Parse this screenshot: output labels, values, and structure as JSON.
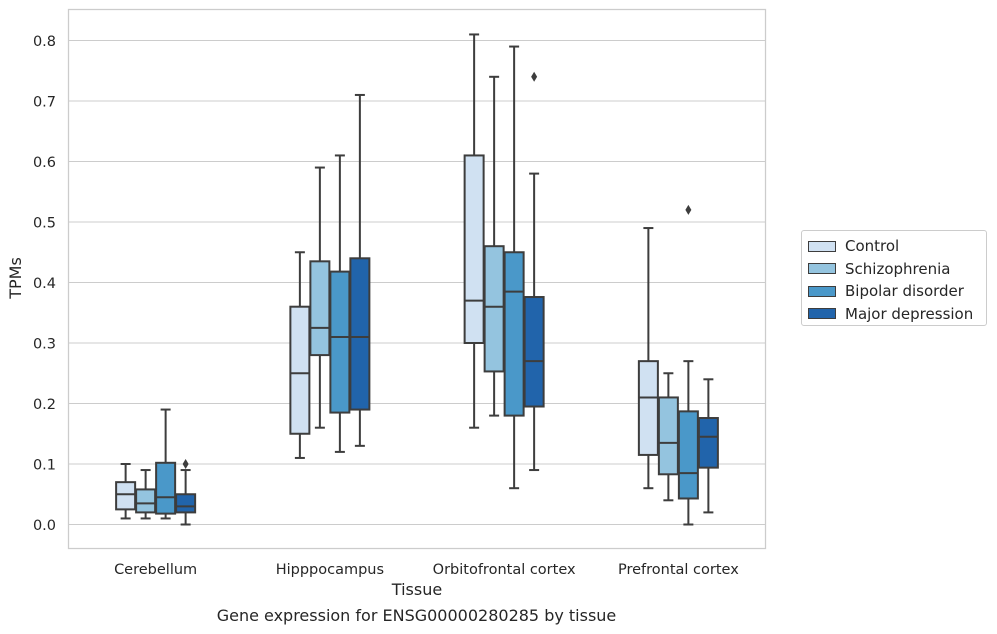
{
  "caption": "Gene expression for ENSG00000280285 by tissue",
  "chart_data": {
    "type": "box",
    "xlabel": "Tissue",
    "ylabel": "TPMs",
    "ylim": [
      -0.04,
      0.85
    ],
    "yticks": [
      "0.0",
      "0.1",
      "0.2",
      "0.3",
      "0.4",
      "0.5",
      "0.6",
      "0.7",
      "0.8"
    ],
    "ytick_values": [
      0.0,
      0.1,
      0.2,
      0.3,
      0.4,
      0.5,
      0.6,
      0.7,
      0.8
    ],
    "categories": [
      "Cerebellum",
      "Hipppocampus",
      "Orbitofrontal cortex",
      "Prefrontal cortex"
    ],
    "grid": "horizontal",
    "legend_position": "outside-right",
    "series": [
      {
        "name": "Control",
        "color": "#d0e1f2",
        "boxes": [
          {
            "whislo": 0.01,
            "q1": 0.025,
            "med": 0.05,
            "q3": 0.07,
            "whishi": 0.1,
            "fliers": []
          },
          {
            "whislo": 0.11,
            "q1": 0.15,
            "med": 0.25,
            "q3": 0.36,
            "whishi": 0.45,
            "fliers": []
          },
          {
            "whislo": 0.16,
            "q1": 0.3,
            "med": 0.37,
            "q3": 0.61,
            "whishi": 0.81,
            "fliers": []
          },
          {
            "whislo": 0.06,
            "q1": 0.115,
            "med": 0.21,
            "q3": 0.27,
            "whishi": 0.49,
            "fliers": []
          }
        ]
      },
      {
        "name": "Schizophrenia",
        "color": "#94c4df",
        "boxes": [
          {
            "whislo": 0.01,
            "q1": 0.02,
            "med": 0.035,
            "q3": 0.058,
            "whishi": 0.09,
            "fliers": []
          },
          {
            "whislo": 0.16,
            "q1": 0.28,
            "med": 0.325,
            "q3": 0.435,
            "whishi": 0.59,
            "fliers": []
          },
          {
            "whislo": 0.18,
            "q1": 0.253,
            "med": 0.36,
            "q3": 0.46,
            "whishi": 0.74,
            "fliers": []
          },
          {
            "whislo": 0.04,
            "q1": 0.083,
            "med": 0.135,
            "q3": 0.21,
            "whishi": 0.25,
            "fliers": []
          }
        ]
      },
      {
        "name": "Bipolar disorder",
        "color": "#4a98c9",
        "boxes": [
          {
            "whislo": 0.01,
            "q1": 0.018,
            "med": 0.045,
            "q3": 0.102,
            "whishi": 0.19,
            "fliers": []
          },
          {
            "whislo": 0.12,
            "q1": 0.185,
            "med": 0.31,
            "q3": 0.418,
            "whishi": 0.61,
            "fliers": []
          },
          {
            "whislo": 0.06,
            "q1": 0.18,
            "med": 0.385,
            "q3": 0.45,
            "whishi": 0.79,
            "fliers": []
          },
          {
            "whislo": 0.0,
            "q1": 0.043,
            "med": 0.085,
            "q3": 0.187,
            "whishi": 0.27,
            "fliers": [
              0.52
            ]
          }
        ]
      },
      {
        "name": "Major depression",
        "color": "#2164ab",
        "boxes": [
          {
            "whislo": 0.0,
            "q1": 0.02,
            "med": 0.03,
            "q3": 0.05,
            "whishi": 0.09,
            "fliers": [
              0.1
            ]
          },
          {
            "whislo": 0.13,
            "q1": 0.19,
            "med": 0.31,
            "q3": 0.44,
            "whishi": 0.71,
            "fliers": []
          },
          {
            "whislo": 0.09,
            "q1": 0.195,
            "med": 0.27,
            "q3": 0.376,
            "whishi": 0.58,
            "fliers": [
              0.74
            ]
          },
          {
            "whislo": 0.02,
            "q1": 0.094,
            "med": 0.145,
            "q3": 0.176,
            "whishi": 0.24,
            "fliers": []
          }
        ]
      }
    ]
  }
}
